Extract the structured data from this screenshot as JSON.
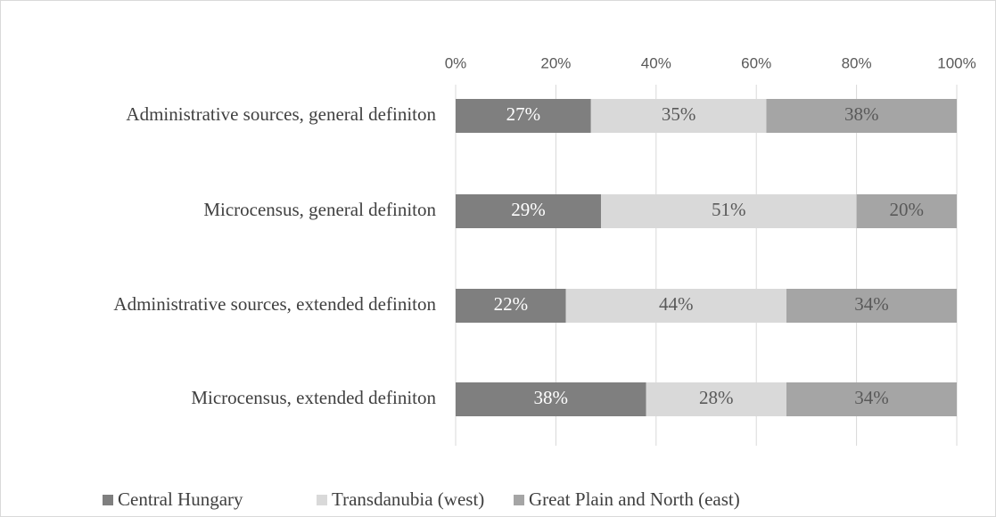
{
  "chart_data": {
    "type": "stacked_barh",
    "categories": [
      "Administrative sources, general definiton",
      "Microcensus, general definiton",
      "Administrative sources, extended definiton",
      "Microcensus, extended definiton"
    ],
    "series": [
      {
        "name": "Central Hungary",
        "color": "#7f7f7f",
        "values": [
          27,
          29,
          22,
          38
        ],
        "value_labels": [
          "27%",
          "29%",
          "22%",
          "38%"
        ]
      },
      {
        "name": "Transdanubia (west)",
        "color": "#d9d9d9",
        "values": [
          35,
          51,
          44,
          28
        ],
        "value_labels": [
          "35%",
          "51%",
          "44%",
          "28%"
        ]
      },
      {
        "name": "Great Plain and North (east)",
        "color": "#a5a5a5",
        "values": [
          38,
          20,
          34,
          34
        ],
        "value_labels": [
          "38%",
          "20%",
          "34%",
          "34%"
        ]
      }
    ],
    "xlim": [
      0,
      100
    ],
    "xticks": [
      {
        "value": 0,
        "label": "0%"
      },
      {
        "value": 20,
        "label": "20%"
      },
      {
        "value": 40,
        "label": "40%"
      },
      {
        "value": 60,
        "label": "60%"
      },
      {
        "value": 80,
        "label": "80%"
      },
      {
        "value": 100,
        "label": "100%"
      }
    ],
    "grid": true,
    "legend": "bottom"
  }
}
